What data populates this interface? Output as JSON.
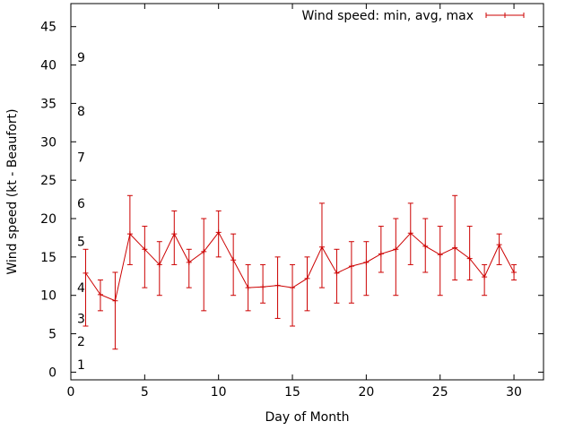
{
  "chart_data": {
    "type": "line",
    "title": "",
    "xlabel": "Day of Month",
    "ylabel": "Wind speed (kt - Beaufort)",
    "xlim": [
      0,
      32
    ],
    "ylim": [
      -1,
      48
    ],
    "xticks": [
      0,
      5,
      10,
      15,
      20,
      25,
      30
    ],
    "yticks": [
      0,
      5,
      10,
      15,
      20,
      25,
      30,
      35,
      40,
      45
    ],
    "beaufort_labels": [
      {
        "label": "1",
        "y": 1
      },
      {
        "label": "2",
        "y": 4
      },
      {
        "label": "3",
        "y": 7
      },
      {
        "label": "4",
        "y": 11
      },
      {
        "label": "5",
        "y": 17
      },
      {
        "label": "6",
        "y": 22
      },
      {
        "label": "7",
        "y": 28
      },
      {
        "label": "8",
        "y": 34
      },
      {
        "label": "9",
        "y": 41
      }
    ],
    "series": [
      {
        "name": "Wind speed: min, avg, max",
        "color": "#cc0000",
        "x": [
          1,
          2,
          3,
          4,
          5,
          6,
          7,
          8,
          9,
          10,
          11,
          12,
          13,
          14,
          15,
          16,
          17,
          18,
          19,
          20,
          21,
          22,
          23,
          24,
          25,
          26,
          27,
          28,
          29,
          30
        ],
        "avg": [
          12.9,
          10.1,
          9.3,
          18.0,
          16.0,
          14.0,
          18.0,
          14.3,
          15.7,
          18.2,
          14.6,
          11.0,
          11.1,
          11.3,
          11.0,
          12.2,
          16.3,
          12.9,
          13.8,
          14.3,
          15.4,
          16.0,
          18.1,
          16.4,
          15.3,
          16.2,
          14.8,
          12.4,
          16.6,
          13.0
        ],
        "min": [
          6,
          8,
          3,
          14,
          11,
          10,
          14,
          11,
          8,
          15,
          10,
          8,
          9,
          7,
          6,
          8,
          11,
          9,
          9,
          10,
          13,
          10,
          14,
          13,
          10,
          12,
          12,
          10,
          14,
          12
        ],
        "max": [
          16,
          12,
          13,
          23,
          19,
          17,
          21,
          16,
          20,
          21,
          18,
          14,
          14,
          15,
          14,
          15,
          22,
          16,
          17,
          17,
          19,
          20,
          22,
          20,
          19,
          23,
          19,
          14,
          18,
          14
        ]
      }
    ]
  }
}
